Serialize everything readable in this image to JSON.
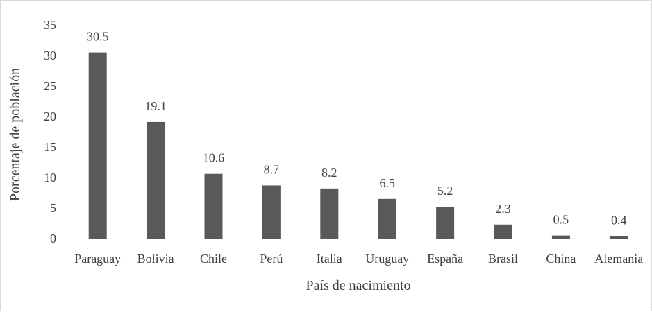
{
  "chart_data": {
    "type": "bar",
    "title": "",
    "xlabel": "País de nacimiento",
    "ylabel": "Porcentaje de población",
    "ylim": [
      0,
      35
    ],
    "yticks": [
      0,
      5,
      10,
      15,
      20,
      25,
      30,
      35
    ],
    "grid": false,
    "legend": "none",
    "bar_color": "#595959",
    "categories": [
      "Paraguay",
      "Bolivia",
      "Chile",
      "Perú",
      "Italia",
      "Uruguay",
      "España",
      "Brasil",
      "China",
      "Alemania"
    ],
    "values": [
      30.5,
      19.1,
      10.6,
      8.7,
      8.2,
      6.5,
      5.2,
      2.3,
      0.5,
      0.4
    ],
    "data_labels": [
      "30.5",
      "19.1",
      "10.6",
      "8.7",
      "8.2",
      "6.5",
      "5.2",
      "2.3",
      "0.5",
      "0.4"
    ]
  }
}
